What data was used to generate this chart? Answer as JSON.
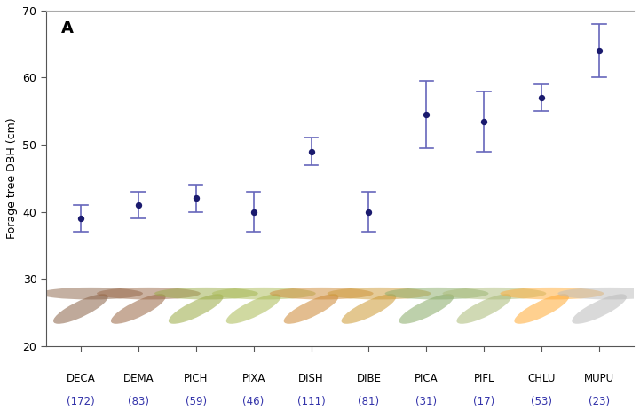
{
  "categories_name": [
    "DECA",
    "DEMA",
    "PICH",
    "PIXA",
    "DISH",
    "DIBE",
    "PICA",
    "PIFL",
    "CHLU",
    "MUPU"
  ],
  "categories_n": [
    "(172)",
    "(83)",
    "(59)",
    "(46)",
    "(111)",
    "(81)",
    "(31)",
    "(17)",
    "(53)",
    "(23)"
  ],
  "means": [
    39.0,
    41.0,
    42.0,
    40.0,
    49.0,
    40.0,
    54.5,
    53.5,
    57.0,
    64.0
  ],
  "yerr_low": [
    2.0,
    2.0,
    2.0,
    3.0,
    2.0,
    3.0,
    5.0,
    4.5,
    2.0,
    4.0
  ],
  "yerr_high": [
    2.0,
    2.0,
    2.0,
    3.0,
    2.0,
    3.0,
    5.0,
    4.5,
    2.0,
    4.0
  ],
  "dot_color": "#1a1a6e",
  "err_color": "#6666bb",
  "name_color": "#000000",
  "n_color": "#3333aa",
  "ylabel": "Forage tree DBH (cm)",
  "panel_label": "A",
  "ylim_min": 20,
  "ylim_max": 70,
  "yticks": [
    20,
    30,
    40,
    50,
    60,
    70
  ],
  "background_color": "#ffffff",
  "tick_label_name_fontsize": 8.5,
  "tick_label_n_fontsize": 8.5
}
